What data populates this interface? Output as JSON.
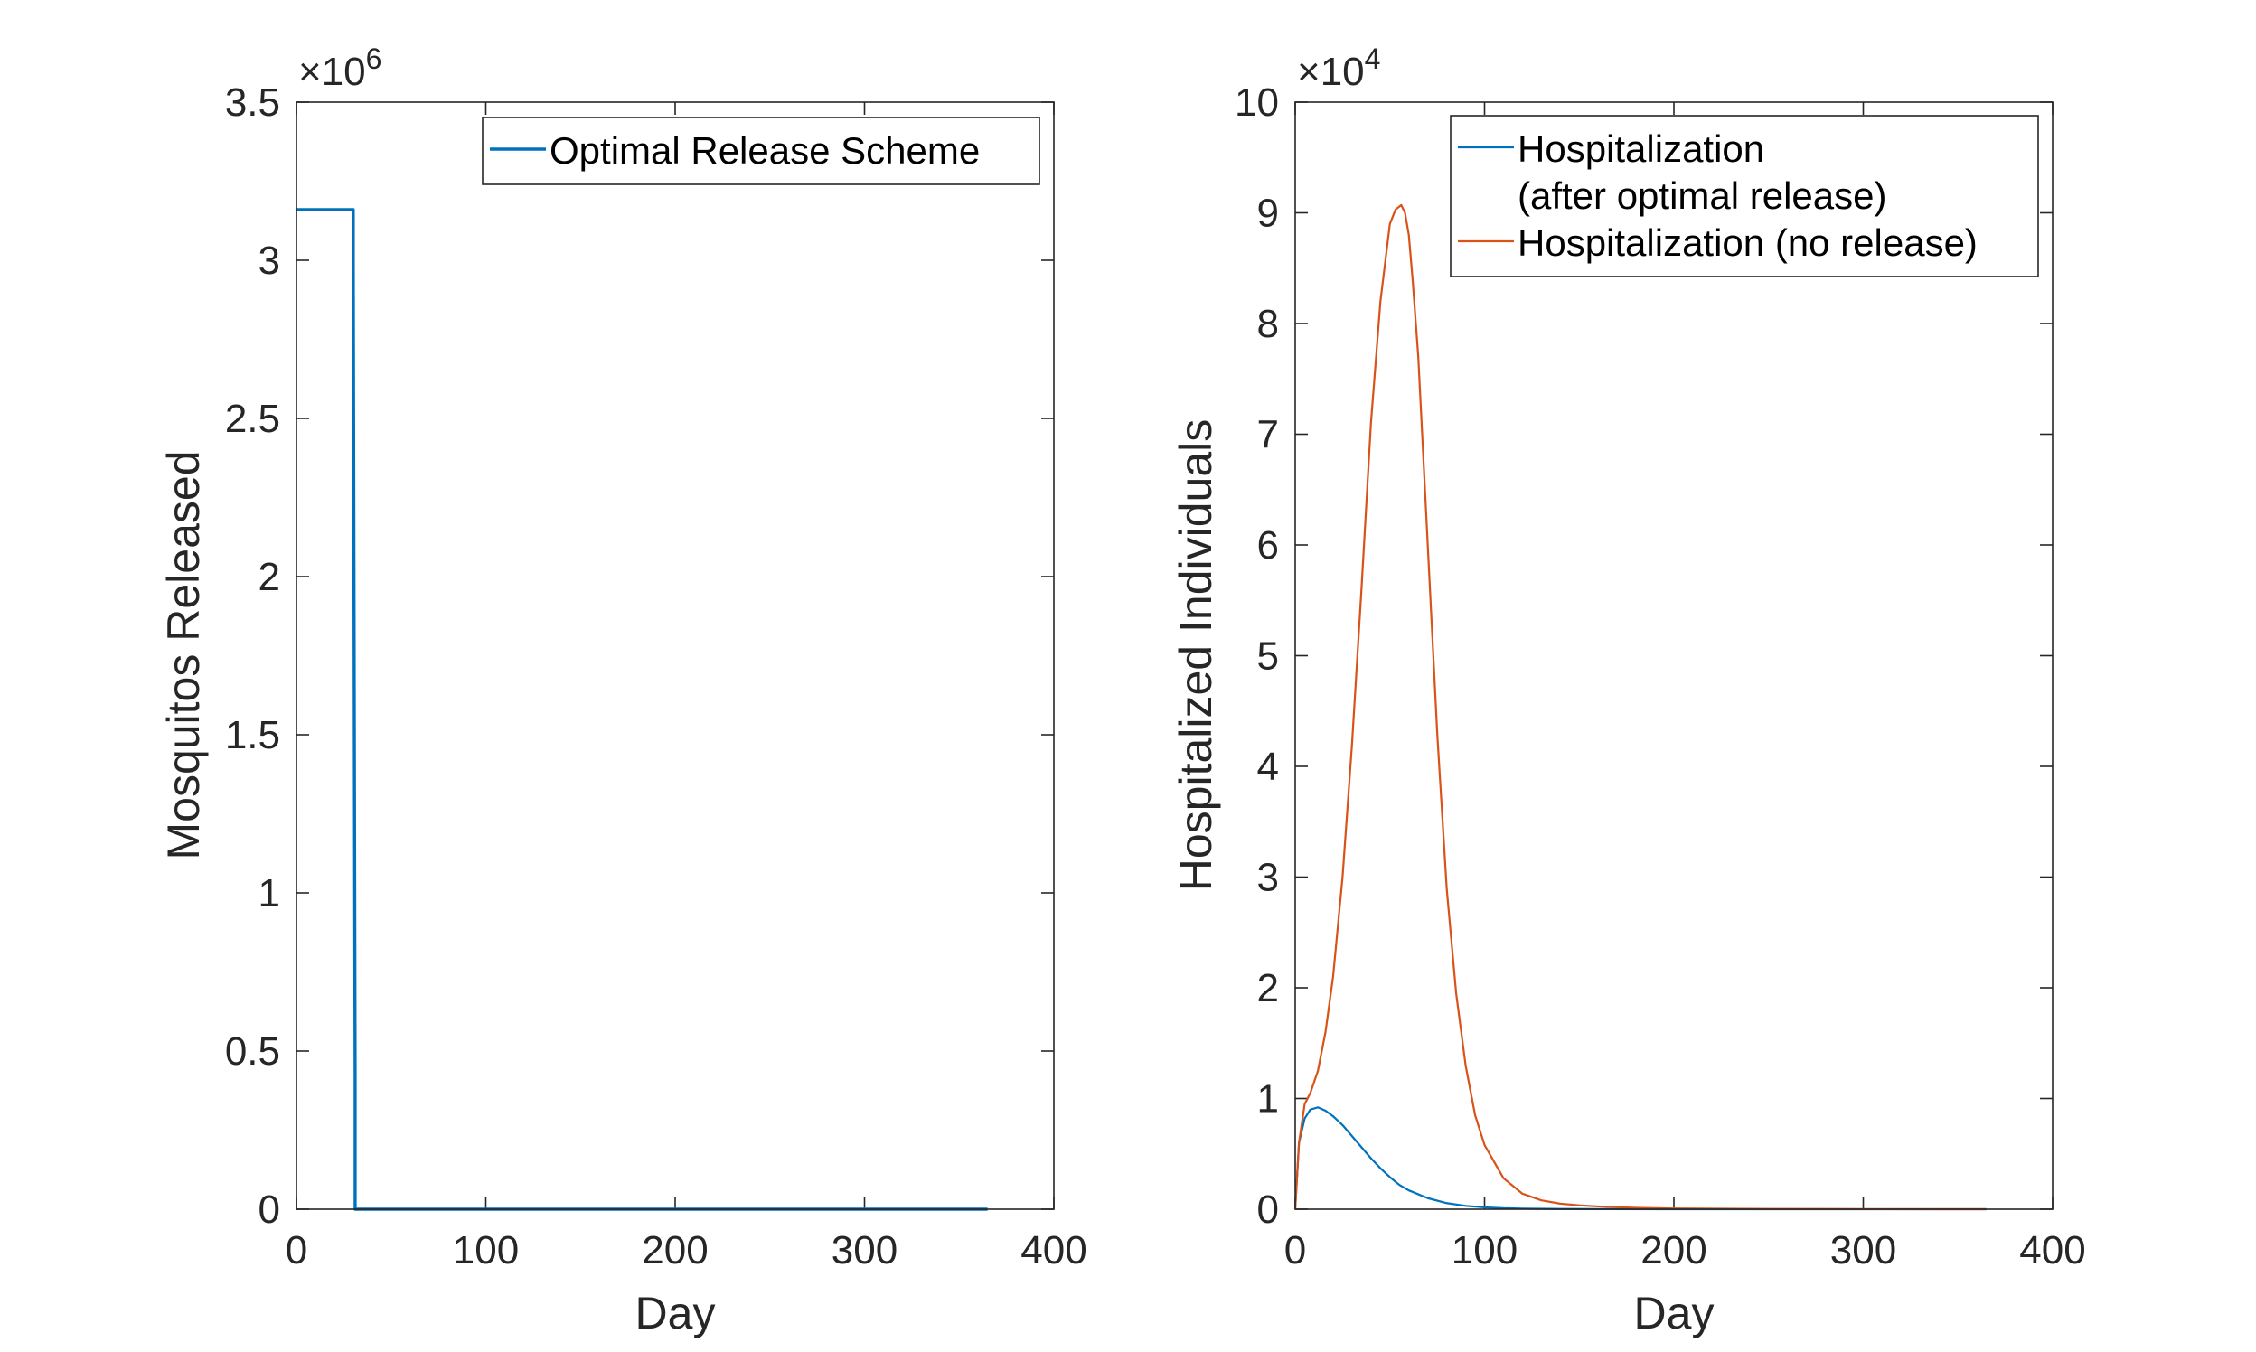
{
  "chart_data": [
    {
      "type": "line",
      "xlabel": "Day",
      "ylabel": "Mosquitos Released",
      "xlim": [
        0,
        400
      ],
      "ylim": [
        0,
        3.5
      ],
      "y_multiplier": "×10",
      "y_exponent": "6",
      "x_ticks": [
        "0",
        "100",
        "200",
        "300",
        "400"
      ],
      "y_ticks": [
        "0",
        "0.5",
        "1",
        "1.5",
        "2",
        "2.5",
        "3",
        "3.5"
      ],
      "legend_position": "top-right",
      "grid": false,
      "series": [
        {
          "name": "Optimal Release Scheme",
          "color": "#0072BD",
          "x": [
            0,
            30,
            30,
            31,
            31,
            365
          ],
          "y": [
            3.16,
            3.16,
            3.0,
            0.4,
            0,
            0
          ]
        }
      ]
    },
    {
      "type": "line",
      "xlabel": "Day",
      "ylabel": "Hospitalized Individuals",
      "xlim": [
        0,
        400
      ],
      "ylim": [
        0,
        10
      ],
      "y_multiplier": "×10",
      "y_exponent": "4",
      "x_ticks": [
        "0",
        "100",
        "200",
        "300",
        "400"
      ],
      "y_ticks": [
        "0",
        "1",
        "2",
        "3",
        "4",
        "5",
        "6",
        "7",
        "8",
        "9",
        "10"
      ],
      "legend_position": "top-right",
      "grid": false,
      "series": [
        {
          "name": "Hospitalization (after optimal release)",
          "legend_lines": [
            "Hospitalization",
            "(after optimal release)"
          ],
          "color": "#0072BD",
          "x": [
            0,
            2,
            5,
            8,
            12,
            16,
            20,
            25,
            30,
            35,
            40,
            45,
            50,
            55,
            60,
            70,
            80,
            90,
            100,
            110,
            120,
            140,
            160,
            200,
            250,
            300,
            365
          ],
          "y": [
            0,
            0.6,
            0.82,
            0.9,
            0.92,
            0.89,
            0.84,
            0.76,
            0.66,
            0.56,
            0.46,
            0.37,
            0.29,
            0.22,
            0.17,
            0.1,
            0.055,
            0.03,
            0.017,
            0.009,
            0.005,
            0.002,
            0.001,
            0.0002,
            0,
            0,
            0
          ]
        },
        {
          "name": "Hospitalization (no release)",
          "legend_lines": [
            "Hospitalization (no release)"
          ],
          "color": "#D95319",
          "x": [
            0,
            2,
            5,
            8,
            12,
            16,
            20,
            25,
            30,
            35,
            40,
            45,
            50,
            53,
            56,
            58,
            60,
            62,
            65,
            70,
            75,
            80,
            85,
            90,
            95,
            100,
            110,
            120,
            130,
            140,
            150,
            160,
            180,
            200,
            250,
            300,
            365
          ],
          "y": [
            0,
            0.6,
            0.95,
            1.05,
            1.25,
            1.6,
            2.1,
            3.0,
            4.2,
            5.6,
            7.1,
            8.2,
            8.9,
            9.03,
            9.07,
            9.0,
            8.8,
            8.4,
            7.7,
            6.0,
            4.3,
            2.9,
            1.95,
            1.3,
            0.85,
            0.58,
            0.28,
            0.14,
            0.08,
            0.05,
            0.035,
            0.025,
            0.012,
            0.006,
            0.002,
            0.0005,
            0
          ]
        }
      ]
    }
  ]
}
